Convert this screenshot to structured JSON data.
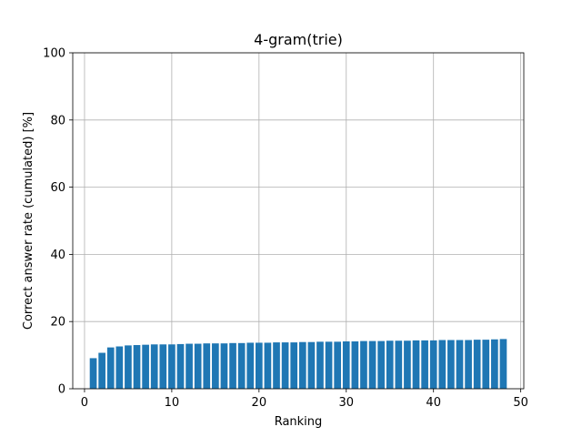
{
  "chart_data": {
    "type": "bar",
    "title": "4-gram(trie)",
    "xlabel": "Ranking",
    "ylabel": "Correct answer rate (cumulated) [%]",
    "xlim": [
      -1.35,
      50.35
    ],
    "ylim": [
      0,
      100
    ],
    "x_ticks": [
      0,
      10,
      20,
      30,
      40,
      50
    ],
    "y_ticks": [
      0,
      20,
      40,
      60,
      80,
      100
    ],
    "grid": true,
    "bar_color": "#1f77b4",
    "x": [
      1,
      2,
      3,
      4,
      5,
      6,
      7,
      8,
      9,
      10,
      11,
      12,
      13,
      14,
      15,
      16,
      17,
      18,
      19,
      20,
      21,
      22,
      23,
      24,
      25,
      26,
      27,
      28,
      29,
      30,
      31,
      32,
      33,
      34,
      35,
      36,
      37,
      38,
      39,
      40,
      41,
      42,
      43,
      44,
      45,
      46,
      47,
      48
    ],
    "values": [
      9.1,
      10.7,
      12.3,
      12.6,
      12.9,
      13.0,
      13.1,
      13.2,
      13.2,
      13.2,
      13.3,
      13.4,
      13.4,
      13.5,
      13.5,
      13.5,
      13.6,
      13.6,
      13.7,
      13.7,
      13.7,
      13.8,
      13.8,
      13.8,
      13.9,
      13.9,
      14.0,
      14.0,
      14.0,
      14.1,
      14.1,
      14.2,
      14.2,
      14.2,
      14.3,
      14.3,
      14.3,
      14.4,
      14.4,
      14.4,
      14.5,
      14.5,
      14.5,
      14.5,
      14.6,
      14.6,
      14.7,
      14.8
    ]
  }
}
